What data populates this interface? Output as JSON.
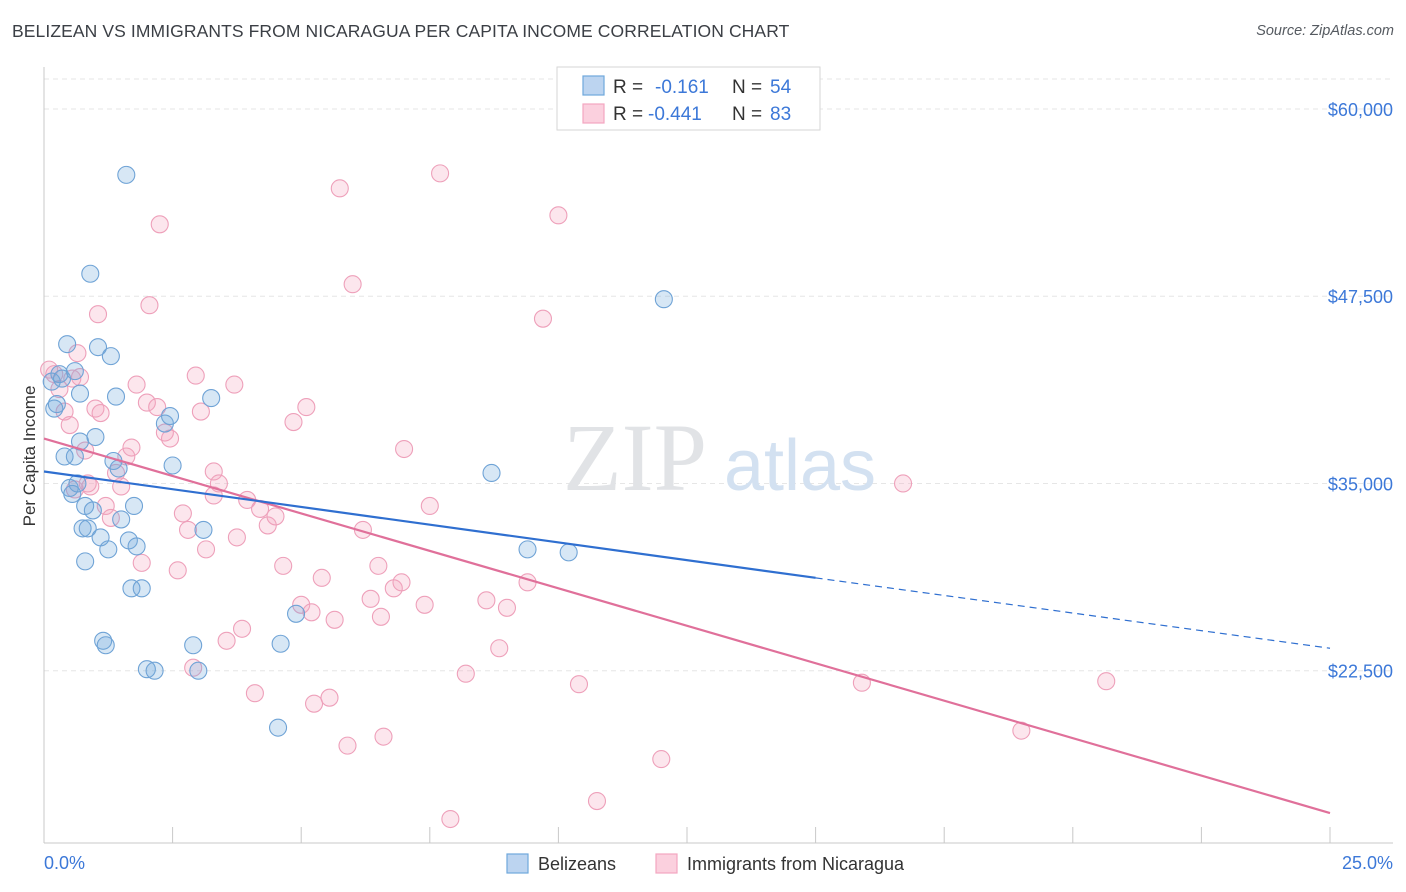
{
  "title": "BELIZEAN VS IMMIGRANTS FROM NICARAGUA PER CAPITA INCOME CORRELATION CHART",
  "source": "Source: ZipAtlas.com",
  "watermark": {
    "zip": "ZIP",
    "atlas": "atlas"
  },
  "legend": {
    "rows": [
      {
        "r_label": "R =",
        "r_value": "-0.161",
        "n_label": "N =",
        "n_value": "54"
      },
      {
        "r_label": "R =",
        "r_value": "-0.441",
        "n_label": "N =",
        "n_value": "83"
      }
    ]
  },
  "bottom_legend": [
    "Belizeans",
    "Immigrants from Nicaragua"
  ],
  "chart_data": {
    "type": "scatter",
    "ylabel": "Per Capita Income",
    "xlim": [
      0,
      25
    ],
    "ylim": [
      11000,
      62000
    ],
    "x_tick_labels": [
      "0.0%",
      "25.0%"
    ],
    "y_ticks": [
      {
        "value": 60000,
        "label": "$60,000"
      },
      {
        "value": 47500,
        "label": "$47,500"
      },
      {
        "value": 35000,
        "label": "$35,000"
      },
      {
        "value": 22500,
        "label": "$22,500"
      }
    ],
    "grid": true,
    "colors": {
      "belizeans": "#6fa8dc",
      "nicaragua": "#f4a6c0",
      "blue_line": "#2f6fd0",
      "pink_line": "#e0709a"
    },
    "series": [
      {
        "name": "Belizeans",
        "trend": {
          "x0": 0,
          "y0": 35800,
          "x1": 15,
          "y1": 28700,
          "dash_x1": 25,
          "dash_y1": 24000
        },
        "points": [
          [
            0.15,
            41800
          ],
          [
            0.2,
            40000
          ],
          [
            0.25,
            40300
          ],
          [
            0.3,
            42300
          ],
          [
            0.35,
            42000
          ],
          [
            0.4,
            36800
          ],
          [
            0.45,
            44300
          ],
          [
            0.5,
            34700
          ],
          [
            0.55,
            34300
          ],
          [
            0.6,
            42500
          ],
          [
            0.6,
            36800
          ],
          [
            0.65,
            35000
          ],
          [
            0.7,
            41000
          ],
          [
            0.7,
            37800
          ],
          [
            0.75,
            32000
          ],
          [
            0.8,
            33500
          ],
          [
            0.8,
            29800
          ],
          [
            0.85,
            32000
          ],
          [
            0.9,
            49000
          ],
          [
            0.95,
            33200
          ],
          [
            1.0,
            38100
          ],
          [
            1.05,
            44100
          ],
          [
            1.1,
            31400
          ],
          [
            1.15,
            24500
          ],
          [
            1.2,
            24200
          ],
          [
            1.25,
            30600
          ],
          [
            1.3,
            43500
          ],
          [
            1.35,
            36500
          ],
          [
            1.4,
            40800
          ],
          [
            1.45,
            36000
          ],
          [
            1.5,
            32600
          ],
          [
            1.6,
            55600
          ],
          [
            1.65,
            31200
          ],
          [
            1.7,
            28000
          ],
          [
            1.75,
            33500
          ],
          [
            1.8,
            30800
          ],
          [
            1.9,
            28000
          ],
          [
            2.0,
            22600
          ],
          [
            2.15,
            22500
          ],
          [
            2.35,
            39000
          ],
          [
            2.45,
            39500
          ],
          [
            2.5,
            36200
          ],
          [
            2.9,
            24200
          ],
          [
            3.0,
            22500
          ],
          [
            3.1,
            31900
          ],
          [
            3.25,
            40700
          ],
          [
            4.55,
            18700
          ],
          [
            4.6,
            24300
          ],
          [
            4.9,
            26300
          ],
          [
            8.7,
            35700
          ],
          [
            9.4,
            30600
          ],
          [
            10.2,
            30400
          ],
          [
            12.05,
            47300
          ]
        ]
      },
      {
        "name": "Immigrants from Nicaragua",
        "trend": {
          "x0": 0,
          "y0": 38000,
          "x1": 25,
          "y1": 13000
        },
        "points": [
          [
            0.1,
            42600
          ],
          [
            0.2,
            42300
          ],
          [
            0.3,
            41300
          ],
          [
            0.4,
            39800
          ],
          [
            0.5,
            38900
          ],
          [
            0.55,
            42000
          ],
          [
            0.6,
            34600
          ],
          [
            0.65,
            43700
          ],
          [
            0.7,
            42100
          ],
          [
            0.8,
            37200
          ],
          [
            0.85,
            35000
          ],
          [
            0.9,
            34800
          ],
          [
            1.0,
            40000
          ],
          [
            1.05,
            46300
          ],
          [
            1.1,
            39700
          ],
          [
            1.2,
            33500
          ],
          [
            1.3,
            32700
          ],
          [
            1.4,
            35700
          ],
          [
            1.5,
            34800
          ],
          [
            1.6,
            36800
          ],
          [
            1.7,
            37400
          ],
          [
            1.8,
            41600
          ],
          [
            1.9,
            29700
          ],
          [
            2.0,
            40400
          ],
          [
            2.05,
            46900
          ],
          [
            2.2,
            40100
          ],
          [
            2.25,
            52300
          ],
          [
            2.35,
            38400
          ],
          [
            2.45,
            38000
          ],
          [
            2.6,
            29200
          ],
          [
            2.7,
            33000
          ],
          [
            2.8,
            31900
          ],
          [
            2.9,
            22700
          ],
          [
            2.95,
            42200
          ],
          [
            3.05,
            39800
          ],
          [
            3.15,
            30600
          ],
          [
            3.3,
            35800
          ],
          [
            3.3,
            34200
          ],
          [
            3.4,
            35000
          ],
          [
            3.55,
            24500
          ],
          [
            3.7,
            41600
          ],
          [
            3.75,
            31400
          ],
          [
            3.85,
            25300
          ],
          [
            3.95,
            33900
          ],
          [
            4.1,
            21000
          ],
          [
            4.2,
            33300
          ],
          [
            4.35,
            32200
          ],
          [
            4.5,
            32800
          ],
          [
            4.65,
            29500
          ],
          [
            4.85,
            39100
          ],
          [
            5.0,
            26900
          ],
          [
            5.1,
            40100
          ],
          [
            5.2,
            26400
          ],
          [
            5.25,
            20300
          ],
          [
            5.4,
            28700
          ],
          [
            5.55,
            20700
          ],
          [
            5.65,
            25900
          ],
          [
            5.75,
            54700
          ],
          [
            5.9,
            17500
          ],
          [
            6.0,
            48300
          ],
          [
            6.2,
            31900
          ],
          [
            6.35,
            27300
          ],
          [
            6.5,
            29500
          ],
          [
            6.55,
            26100
          ],
          [
            6.6,
            18100
          ],
          [
            6.8,
            28000
          ],
          [
            6.95,
            28400
          ],
          [
            7.0,
            37300
          ],
          [
            7.4,
            26900
          ],
          [
            7.5,
            33500
          ],
          [
            7.7,
            55700
          ],
          [
            7.9,
            12600
          ],
          [
            8.2,
            22300
          ],
          [
            8.6,
            27200
          ],
          [
            8.85,
            24000
          ],
          [
            9.0,
            26700
          ],
          [
            9.4,
            28400
          ],
          [
            9.7,
            46000
          ],
          [
            10.0,
            52900
          ],
          [
            10.4,
            21600
          ],
          [
            10.75,
            13800
          ],
          [
            12.0,
            16600
          ],
          [
            15.9,
            21700
          ],
          [
            16.7,
            35000
          ],
          [
            19.0,
            18500
          ],
          [
            20.65,
            21800
          ]
        ]
      }
    ]
  }
}
